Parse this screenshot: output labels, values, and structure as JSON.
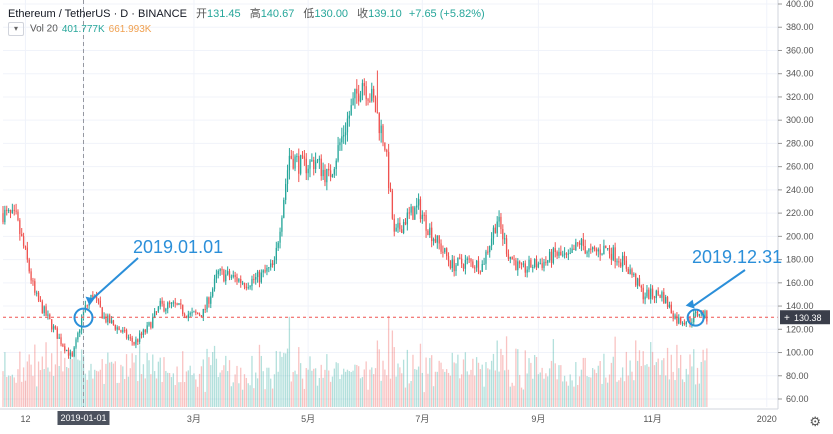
{
  "header": {
    "symbol": "Ethereum / TetherUS · D · BINANCE",
    "open_label": "开",
    "open": "131.45",
    "high_label": "高",
    "high": "140.67",
    "low_label": "低",
    "low": "130.00",
    "close_label": "收",
    "close": "139.10",
    "change": "+7.65 (+5.82%)"
  },
  "volume_indicator": {
    "label": "Vol 20",
    "value1": "401.777K",
    "value2": "661.993K"
  },
  "price_tag": "130.38",
  "crosshair_date": "2019-01-01",
  "annotations": {
    "start": "2019.01.01",
    "end": "2019.12.31"
  },
  "colors": {
    "up": "#26a69a",
    "down": "#ef5350",
    "annotation": "#2b8fd9"
  },
  "chart_data": {
    "type": "candlestick",
    "y_axis": {
      "min": 60,
      "max": 400,
      "ticks": [
        "60.00",
        "80.00",
        "100.00",
        "120.00",
        "140.00",
        "160.00",
        "180.00",
        "200.00",
        "220.00",
        "240.00",
        "260.00",
        "280.00",
        "300.00",
        "320.00",
        "340.00",
        "360.00",
        "380.00",
        "400.00"
      ]
    },
    "x_ticks": [
      {
        "label": "12",
        "x": 0
      },
      {
        "label": "2019-01-01",
        "x": 31
      },
      {
        "label": "3月",
        "x": 90
      },
      {
        "label": "5月",
        "x": 151
      },
      {
        "label": "7月",
        "x": 212
      },
      {
        "label": "9月",
        "x": 274
      },
      {
        "label": "11月",
        "x": 335
      },
      {
        "label": "2020",
        "x": 396
      }
    ],
    "x_range": [
      -12,
      402
    ],
    "price_anchors": [
      [
        -12,
        220
      ],
      [
        -5,
        215
      ],
      [
        0,
        185
      ],
      [
        5,
        150
      ],
      [
        10,
        135
      ],
      [
        18,
        112
      ],
      [
        25,
        95
      ],
      [
        31,
        135
      ],
      [
        36,
        150
      ],
      [
        42,
        130
      ],
      [
        50,
        120
      ],
      [
        58,
        108
      ],
      [
        65,
        120
      ],
      [
        72,
        140
      ],
      [
        80,
        140
      ],
      [
        88,
        132
      ],
      [
        95,
        134
      ],
      [
        103,
        168
      ],
      [
        110,
        165
      ],
      [
        118,
        160
      ],
      [
        125,
        165
      ],
      [
        133,
        175
      ],
      [
        141,
        270
      ],
      [
        148,
        260
      ],
      [
        155,
        265
      ],
      [
        162,
        250
      ],
      [
        172,
        300
      ],
      [
        180,
        335
      ],
      [
        186,
        315
      ],
      [
        192,
        280
      ],
      [
        197,
        200
      ],
      [
        203,
        215
      ],
      [
        210,
        225
      ],
      [
        216,
        205
      ],
      [
        222,
        190
      ],
      [
        228,
        175
      ],
      [
        236,
        178
      ],
      [
        244,
        175
      ],
      [
        252,
        215
      ],
      [
        258,
        185
      ],
      [
        265,
        170
      ],
      [
        270,
        175
      ],
      [
        278,
        178
      ],
      [
        283,
        185
      ],
      [
        290,
        180
      ],
      [
        296,
        195
      ],
      [
        302,
        185
      ],
      [
        310,
        190
      ],
      [
        318,
        180
      ],
      [
        323,
        170
      ],
      [
        330,
        150
      ],
      [
        340,
        150
      ],
      [
        348,
        128
      ],
      [
        355,
        128
      ],
      [
        360,
        135
      ],
      [
        364,
        130
      ]
    ],
    "volume_axis": {
      "max": 100
    }
  }
}
